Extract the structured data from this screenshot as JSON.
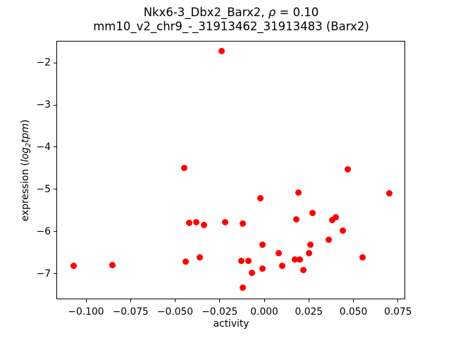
{
  "figure": {
    "background": "#ffffff",
    "frame_color": "#000000"
  },
  "chart_data": {
    "type": "scatter",
    "title": "Nkx6-3_Dbx2_Barx2, ρ = 0.10",
    "title_parts": {
      "prefix": "Nkx6-3_Dbx2_Barx2, ",
      "rho": "ρ",
      "suffix": " = 0.10"
    },
    "subtitle": "mm10_v2_chr9_-_31913462_31913483 (Barx2)",
    "xlabel": "activity",
    "ylabel": "expression (log2tpm)",
    "ylabel_parts": {
      "prefix": "expression (",
      "log": "log",
      "sub": "2",
      "tpm": "tpm",
      "suffix": ")"
    },
    "marker_color": "#ff0000",
    "marker_size_px": 9,
    "grid": false,
    "legend": null,
    "xlim": [
      -0.1166,
      0.0793
    ],
    "ylim": [
      -7.6,
      -1.49
    ],
    "xticks": {
      "values": [
        -0.1,
        -0.075,
        -0.05,
        -0.025,
        0.0,
        0.025,
        0.05,
        0.075
      ],
      "labels": [
        "−0.100",
        "−0.075",
        "−0.050",
        "−0.025",
        "0.000",
        "0.025",
        "0.050",
        "0.075"
      ]
    },
    "yticks": {
      "values": [
        -2,
        -3,
        -4,
        -5,
        -6,
        -7
      ],
      "labels": [
        "−2",
        "−3",
        "−4",
        "−5",
        "−6",
        "−7"
      ]
    },
    "points": [
      [
        -0.024,
        -1.72
      ],
      [
        -0.045,
        -4.5
      ],
      [
        0.047,
        -4.52
      ],
      [
        -0.107,
        -6.82
      ],
      [
        -0.085,
        -6.79
      ],
      [
        -0.042,
        -5.79
      ],
      [
        -0.038,
        -5.77
      ],
      [
        -0.034,
        -5.84
      ],
      [
        -0.022,
        -5.78
      ],
      [
        -0.044,
        -6.71
      ],
      [
        -0.036,
        -6.62
      ],
      [
        -0.002,
        -5.21
      ],
      [
        0.019,
        -5.08
      ],
      [
        0.027,
        -5.56
      ],
      [
        0.018,
        -5.71
      ],
      [
        -0.012,
        -5.81
      ],
      [
        -0.001,
        -6.32
      ],
      [
        0.026,
        -6.31
      ],
      [
        0.008,
        -6.52
      ],
      [
        0.025,
        -6.52
      ],
      [
        0.017,
        -6.66
      ],
      [
        0.02,
        -6.66
      ],
      [
        -0.013,
        -6.7
      ],
      [
        -0.009,
        -6.7
      ],
      [
        -0.001,
        -6.88
      ],
      [
        0.01,
        -6.82
      ],
      [
        0.022,
        -6.92
      ],
      [
        -0.007,
        -6.98
      ],
      [
        -0.012,
        -7.33
      ],
      [
        0.055,
        -6.61
      ],
      [
        0.07,
        -5.1
      ],
      [
        0.038,
        -5.73
      ],
      [
        0.04,
        -5.66
      ],
      [
        0.044,
        -5.97
      ],
      [
        0.036,
        -6.19
      ]
    ]
  }
}
